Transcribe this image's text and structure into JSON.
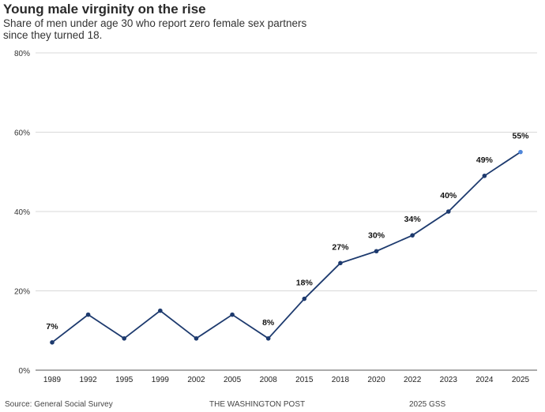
{
  "header": {
    "title": "Young male virginity on the rise",
    "subtitle": "Share of men under age 30 who report zero female sex partners since they turned 18."
  },
  "footer": {
    "source": "Source: General Social Survey",
    "publisher": "THE WASHINGTON POST",
    "note": "2025 GSS"
  },
  "chart_data": {
    "type": "line",
    "categories": [
      "1989",
      "1992",
      "1995",
      "1999",
      "2002",
      "2005",
      "2008",
      "2015",
      "2018",
      "2020",
      "2022",
      "2023",
      "2024",
      "2025"
    ],
    "values": [
      7,
      14,
      8,
      15,
      8,
      14,
      8,
      18,
      27,
      30,
      34,
      40,
      49,
      55
    ],
    "data_labels": {
      "1989": "7%",
      "2008": "8%",
      "2015": "18%",
      "2018": "27%",
      "2020": "30%",
      "2022": "34%",
      "2023": "40%",
      "2024": "49%",
      "2025": "55%"
    },
    "ylim": [
      0,
      80
    ],
    "yticks": [
      0,
      20,
      40,
      60,
      80
    ],
    "ytick_labels": [
      "0%",
      "20%",
      "40%",
      "60%",
      "80%"
    ],
    "grid": true,
    "colors": {
      "line": "#1d3a6e",
      "marker": "#1d3a6e",
      "highlight": "#4f86d9",
      "grid": "#d9d9d9",
      "axis": "#555555"
    }
  }
}
